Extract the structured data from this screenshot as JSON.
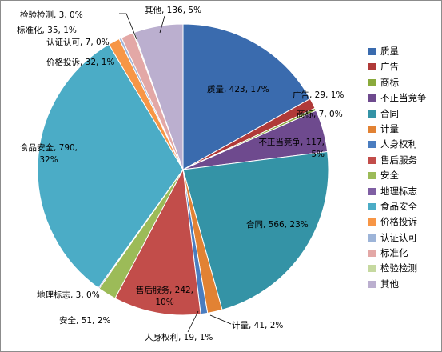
{
  "chart_data": {
    "type": "pie",
    "title": "",
    "legend_position": "right",
    "slices": [
      {
        "name": "质量",
        "value": 423,
        "label": "质量, 423, 17%",
        "color": "#3A6BAE"
      },
      {
        "name": "广告",
        "value": 29,
        "label": "广告, 29, 1%",
        "color": "#B03A38"
      },
      {
        "name": "商标",
        "value": 7,
        "label": "商标, 7, 0%",
        "color": "#8AAA3C"
      },
      {
        "name": "不正当竞争",
        "value": 117,
        "label": "不正当竞争, 117, 5%",
        "color": "#6E4A8E"
      },
      {
        "name": "合同",
        "value": 566,
        "label": "合同, 566, 23%",
        "color": "#3493A6"
      },
      {
        "name": "计量",
        "value": 41,
        "label": "计量, 41, 2%",
        "color": "#E28233"
      },
      {
        "name": "人身权利",
        "value": 19,
        "label": "人身权利, 19, 1%",
        "color": "#4A7DC0"
      },
      {
        "name": "售后服务",
        "value": 242,
        "label": "售后服务, 242, 10%",
        "color": "#C24D4A"
      },
      {
        "name": "安全",
        "value": 51,
        "label": "安全, 51, 2%",
        "color": "#9CBB58"
      },
      {
        "name": "地理标志",
        "value": 3,
        "label": "地理标志, 3, 0%",
        "color": "#7F5FA3"
      },
      {
        "name": "食品安全",
        "value": 790,
        "label": "食品安全, 790, 32%",
        "color": "#4BACC6"
      },
      {
        "name": "价格投诉",
        "value": 32,
        "label": "价格投诉, 32, 1%",
        "color": "#F79646"
      },
      {
        "name": "认证认可",
        "value": 7,
        "label": "认证认可, 7, 0%",
        "color": "#9DB4D8"
      },
      {
        "name": "标准化",
        "value": 35,
        "label": "标准化, 35, 1%",
        "color": "#E3A8A6"
      },
      {
        "name": "检验检测",
        "value": 3,
        "label": "检验检测, 3, 0%",
        "color": "#C6D9A0"
      },
      {
        "name": "其他",
        "value": 136,
        "label": "其他, 136, 5%",
        "color": "#BBAFCF"
      }
    ]
  }
}
